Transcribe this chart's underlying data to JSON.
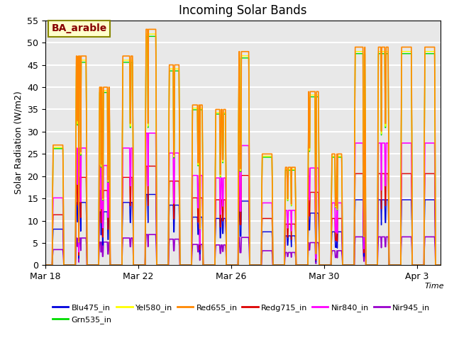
{
  "title": "Incoming Solar Bands",
  "ylabel": "Solar Radiation (W/m2)",
  "xlabel": "Time",
  "annotation": "BA_arable",
  "ylim": [
    0,
    55
  ],
  "series": {
    "Blu475_in": {
      "color": "#0000dd",
      "lw": 1.0
    },
    "Grn535_in": {
      "color": "#00dd00",
      "lw": 1.0
    },
    "Yel580_in": {
      "color": "#ffff00",
      "lw": 1.0
    },
    "Red655_in": {
      "color": "#ff8800",
      "lw": 1.2
    },
    "Redg715_in": {
      "color": "#dd0000",
      "lw": 1.0
    },
    "Nir840_in": {
      "color": "#ff00ff",
      "lw": 1.2
    },
    "Nir945_in": {
      "color": "#9900cc",
      "lw": 1.2
    }
  },
  "xtick_labels": [
    "Mar 18",
    "Mar 22",
    "Mar 26",
    "Mar 30",
    "Apr 3"
  ],
  "plot_bg_color": "#e8e8e8",
  "grid_color": "#ffffff",
  "annotation_bg": "#ffffcc",
  "annotation_fg": "#880000",
  "annotation_border": "#888800"
}
